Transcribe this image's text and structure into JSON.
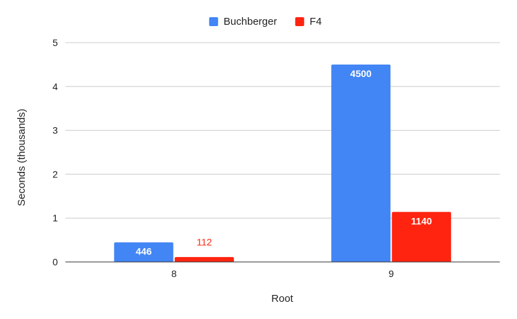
{
  "chart_data": {
    "type": "bar",
    "title": "",
    "xlabel": "Root",
    "ylabel": "Seconds (thousands)",
    "categories": [
      "8",
      "9"
    ],
    "series": [
      {
        "name": "Buchberger",
        "color": "#4285f4",
        "values": [
          446,
          4500
        ],
        "labels": [
          "446",
          "4500"
        ]
      },
      {
        "name": "F4",
        "color": "#ff2410",
        "values": [
          112,
          1140
        ],
        "labels": [
          "112",
          "1140"
        ]
      }
    ],
    "ylim": [
      0,
      5000
    ],
    "yticks": [
      0,
      1000,
      2000,
      3000,
      4000,
      5000
    ],
    "ytick_labels": [
      "0",
      "1",
      "2",
      "3",
      "4",
      "5"
    ],
    "grid": true,
    "legend_position": "top"
  }
}
